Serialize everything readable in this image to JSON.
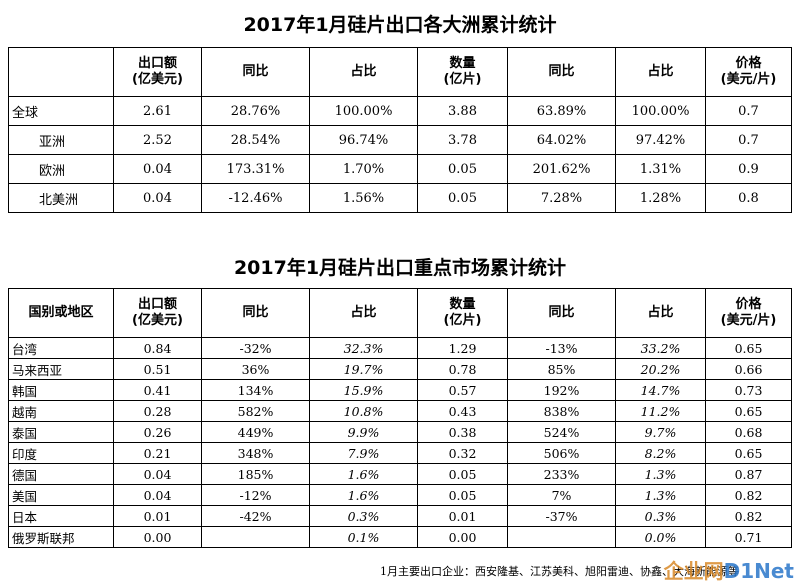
{
  "table1": {
    "title": "2017年1月硅片出口各大洲累计统计",
    "headers": [
      "",
      "出口额\n(亿美元)",
      "同比",
      "占比",
      "数量\n(亿片)",
      "同比",
      "占比",
      "价格\n(美元/片)"
    ],
    "rows": [
      [
        "全球",
        "2.61",
        "28.76%",
        "100.00%",
        "3.88",
        "63.89%",
        "100.00%",
        "0.7"
      ],
      [
        "亚洲",
        "2.52",
        "28.54%",
        "96.74%",
        "3.78",
        "64.02%",
        "97.42%",
        "0.7"
      ],
      [
        "欧洲",
        "0.04",
        "173.31%",
        "1.70%",
        "0.05",
        "201.62%",
        "1.31%",
        "0.9"
      ],
      [
        "北美洲",
        "0.04",
        "-12.46%",
        "1.56%",
        "0.05",
        "7.28%",
        "1.28%",
        "0.8"
      ]
    ]
  },
  "table2": {
    "title": "2017年1月硅片出口重点市场累计统计",
    "headers": [
      "国别或地区",
      "出口额\n(亿美元)",
      "同比",
      "占比",
      "数量\n(亿片)",
      "同比",
      "占比",
      "价格\n(美元/片)"
    ],
    "rows": [
      [
        "台湾",
        "0.84",
        "-32%",
        "32.3%",
        "1.29",
        "-13%",
        "33.2%",
        "0.65"
      ],
      [
        "马来西亚",
        "0.51",
        "36%",
        "19.7%",
        "0.78",
        "85%",
        "20.2%",
        "0.66"
      ],
      [
        "韩国",
        "0.41",
        "134%",
        "15.9%",
        "0.57",
        "192%",
        "14.7%",
        "0.73"
      ],
      [
        "越南",
        "0.28",
        "582%",
        "10.8%",
        "0.43",
        "838%",
        "11.2%",
        "0.65"
      ],
      [
        "泰国",
        "0.26",
        "449%",
        "9.9%",
        "0.38",
        "524%",
        "9.7%",
        "0.68"
      ],
      [
        "印度",
        "0.21",
        "348%",
        "7.9%",
        "0.32",
        "506%",
        "8.2%",
        "0.65"
      ],
      [
        "德国",
        "0.04",
        "185%",
        "1.6%",
        "0.05",
        "233%",
        "1.3%",
        "0.87"
      ],
      [
        "美国",
        "0.04",
        "-12%",
        "1.6%",
        "0.05",
        "7%",
        "1.3%",
        "0.82"
      ],
      [
        "日本",
        "0.01",
        "-42%",
        "0.3%",
        "0.01",
        "-37%",
        "0.3%",
        "0.82"
      ],
      [
        "俄罗斯联邦",
        "0.00",
        "",
        "0.1%",
        "0.00",
        "",
        "0.0%",
        "0.71"
      ]
    ]
  },
  "footer": "1月主要出口企业：西安隆基、江苏美科、旭阳雷迪、协鑫、大海新能源等",
  "watermark": {
    "brand": "企业网",
    "suffix": "D1Net"
  }
}
